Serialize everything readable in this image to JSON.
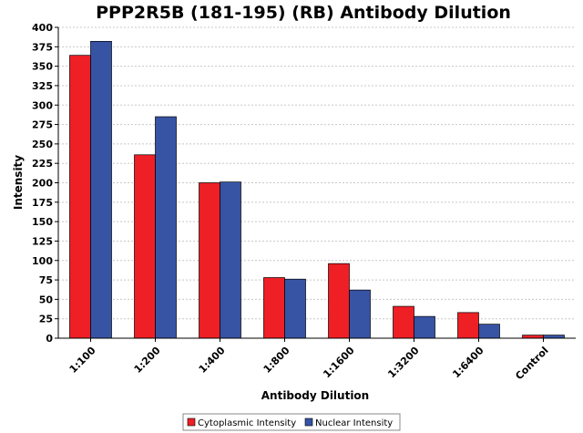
{
  "chart_data": {
    "type": "bar",
    "title": "PPP2R5B (181-195) (RB) Antibody Dilution",
    "xlabel": "Antibody Dilution",
    "ylabel": "Intensity",
    "categories": [
      "1:100",
      "1:200",
      "1:400",
      "1:800",
      "1:1600",
      "1:3200",
      "1:6400",
      "Control"
    ],
    "series": [
      {
        "name": "Cytoplasmic Intensity",
        "color": "#ee1f25",
        "values": [
          364,
          236,
          200,
          78,
          96,
          41,
          33,
          4
        ]
      },
      {
        "name": "Nuclear Intensity",
        "color": "#3753a4",
        "values": [
          382,
          285,
          201,
          76,
          62,
          28,
          18,
          4
        ]
      }
    ],
    "ylim": [
      0,
      400
    ],
    "yticks": [
      0,
      25,
      50,
      75,
      100,
      125,
      150,
      175,
      200,
      225,
      250,
      275,
      300,
      325,
      350,
      375,
      400
    ],
    "grid": true,
    "legend_position": "bottom"
  }
}
